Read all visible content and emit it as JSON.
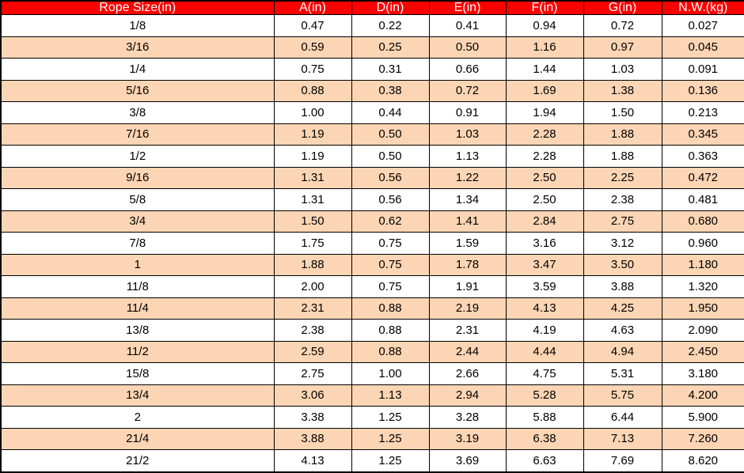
{
  "table": {
    "columns": [
      "Rope Size(in)",
      "A(in)",
      "D(in)",
      "E(in)",
      "F(in)",
      "G(in)",
      "N.W.(kg)"
    ],
    "rows": [
      [
        "1/8",
        "0.47",
        "0.22",
        "0.41",
        "0.94",
        "0.72",
        "0.027"
      ],
      [
        "3/16",
        "0.59",
        "0.25",
        "0.50",
        "1.16",
        "0.97",
        "0.045"
      ],
      [
        "1/4",
        "0.75",
        "0.31",
        "0.66",
        "1.44",
        "1.03",
        "0.091"
      ],
      [
        "5/16",
        "0.88",
        "0.38",
        "0.72",
        "1.69",
        "1.38",
        "0.136"
      ],
      [
        "3/8",
        "1.00",
        "0.44",
        "0.91",
        "1.94",
        "1.50",
        "0.213"
      ],
      [
        "7/16",
        "1.19",
        "0.50",
        "1.03",
        "2.28",
        "1.88",
        "0.345"
      ],
      [
        "1/2",
        "1.19",
        "0.50",
        "1.13",
        "2.28",
        "1.88",
        "0.363"
      ],
      [
        "9/16",
        "1.31",
        "0.56",
        "1.22",
        "2.50",
        "2.25",
        "0.472"
      ],
      [
        "5/8",
        "1.31",
        "0.56",
        "1.34",
        "2.50",
        "2.38",
        "0.481"
      ],
      [
        "3/4",
        "1.50",
        "0.62",
        "1.41",
        "2.84",
        "2.75",
        "0.680"
      ],
      [
        "7/8",
        "1.75",
        "0.75",
        "1.59",
        "3.16",
        "3.12",
        "0.960"
      ],
      [
        "1",
        "1.88",
        "0.75",
        "1.78",
        "3.47",
        "3.50",
        "1.180"
      ],
      [
        "11/8",
        "2.00",
        "0.75",
        "1.91",
        "3.59",
        "3.88",
        "1.320"
      ],
      [
        "11/4",
        "2.31",
        "0.88",
        "2.19",
        "4.13",
        "4.25",
        "1.950"
      ],
      [
        "13/8",
        "2.38",
        "0.88",
        "2.31",
        "4.19",
        "4.63",
        "2.090"
      ],
      [
        "11/2",
        "2.59",
        "0.88",
        "2.44",
        "4.44",
        "4.94",
        "2.450"
      ],
      [
        "15/8",
        "2.75",
        "1.00",
        "2.66",
        "4.75",
        "5.31",
        "3.180"
      ],
      [
        "13/4",
        "3.06",
        "1.13",
        "2.94",
        "5.28",
        "5.75",
        "4.200"
      ],
      [
        "2",
        "3.38",
        "1.25",
        "3.28",
        "5.88",
        "6.44",
        "5.900"
      ],
      [
        "21/4",
        "3.88",
        "1.25",
        "3.19",
        "6.38",
        "7.13",
        "7.260"
      ],
      [
        "21/2",
        "4.13",
        "1.25",
        "3.69",
        "6.63",
        "7.69",
        "8.620"
      ]
    ],
    "colors": {
      "header_bg": "#ff0000",
      "header_text": "#ffffff",
      "row_bg": "#ffffff",
      "alt_row_bg": "#fcd5b4",
      "grid": "#000000",
      "text": "#000000"
    }
  }
}
